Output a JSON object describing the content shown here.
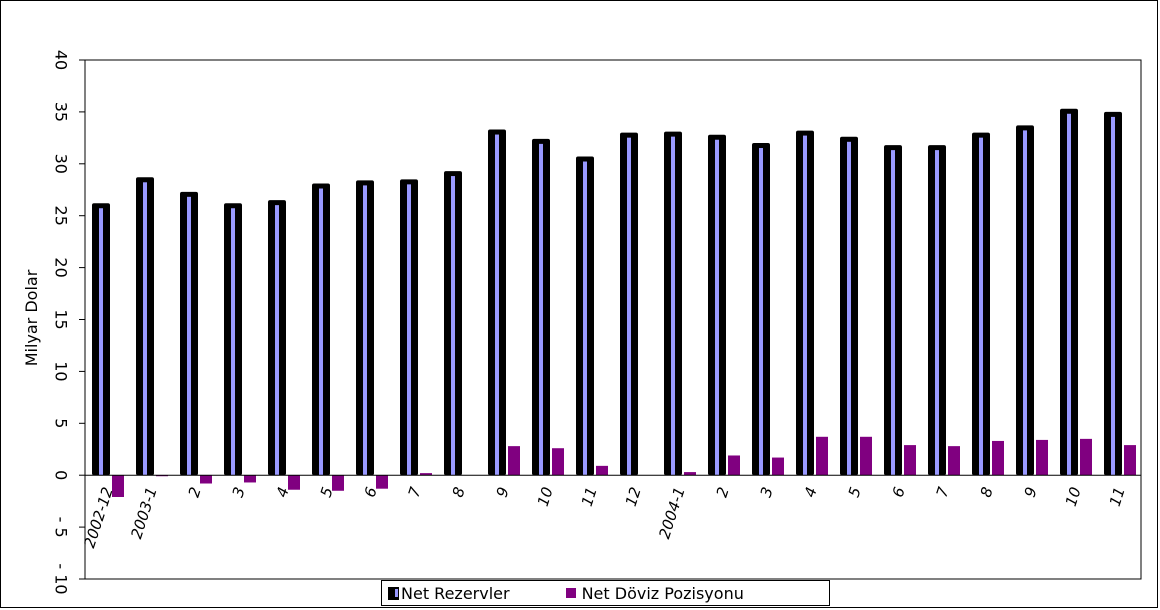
{
  "chart_data": {
    "type": "bar",
    "ylabel": "Milyar Dolar",
    "ylim": [
      -10,
      40
    ],
    "yticks": [
      "40",
      "35",
      "30",
      "25",
      "20",
      "15",
      "10",
      "5",
      "0",
      "- 5",
      "- 10"
    ],
    "categories": [
      "2002-12",
      "2003-1",
      "2",
      "3",
      "4",
      "5",
      "6",
      "7",
      "8",
      "9",
      "10",
      "11",
      "12",
      "2004-1",
      "2",
      "3",
      "4",
      "5",
      "6",
      "7",
      "8",
      "9",
      "10",
      "11"
    ],
    "series": [
      {
        "name": "Net Rezervler",
        "color": "#9999ff",
        "border": "#000000",
        "values": [
          26.2,
          28.7,
          27.3,
          26.2,
          26.5,
          28.1,
          28.4,
          28.5,
          29.3,
          33.3,
          32.4,
          30.7,
          33.0,
          33.1,
          32.8,
          32.0,
          33.2,
          32.6,
          31.8,
          31.8,
          33.0,
          33.7,
          35.3,
          35.0
        ]
      },
      {
        "name": "Net Döviz Pozisyonu",
        "color": "#800080",
        "values": [
          -2.1,
          -0.1,
          -0.8,
          -0.7,
          -1.4,
          -1.5,
          -1.3,
          0.2,
          0.0,
          2.8,
          2.6,
          0.9,
          0.0,
          0.3,
          1.9,
          1.7,
          3.7,
          3.7,
          2.9,
          2.8,
          3.3,
          3.4,
          3.5,
          2.9
        ]
      }
    ],
    "grid": false,
    "legend_position": "bottom"
  },
  "colors": {
    "plot_border": "#000000",
    "background": "#ffffff"
  }
}
